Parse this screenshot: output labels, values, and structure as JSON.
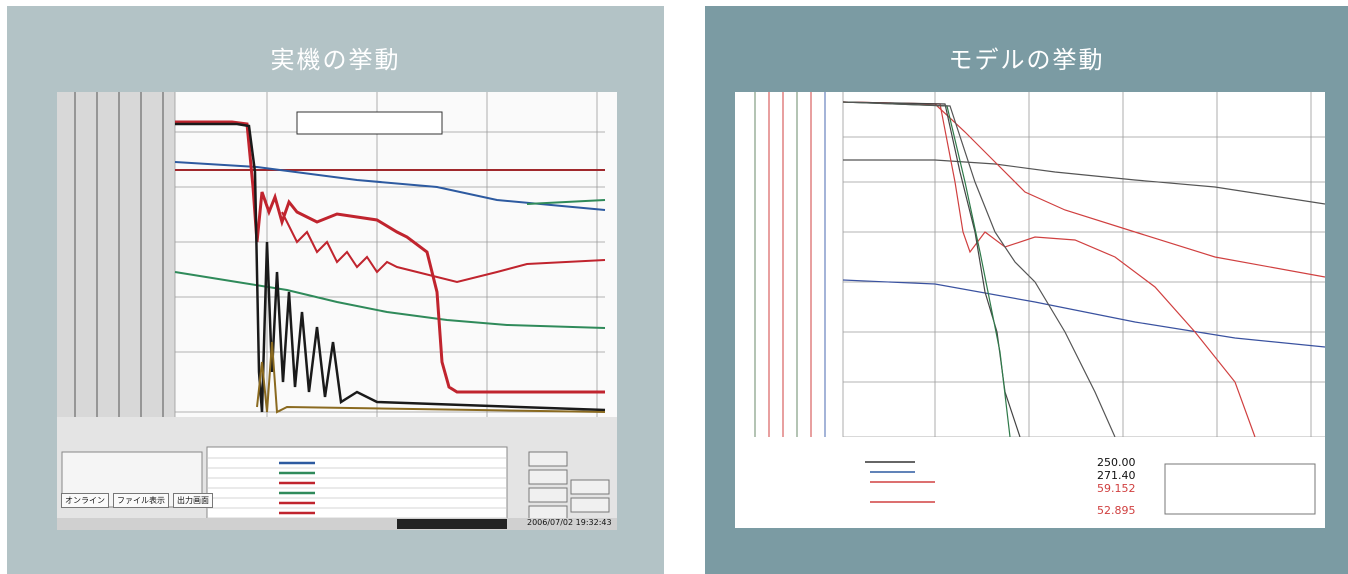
{
  "panels": {
    "left": {
      "title": "実機の挙動"
    },
    "right": {
      "title": "モデルの挙動"
    }
  },
  "left_screen": {
    "buttons": [
      "オンライン",
      "ファイル表示",
      "出力画面"
    ],
    "timestamp": "2006/07/02 19:32:43"
  },
  "right_screen": {
    "value_1": "250.00",
    "value_2": "271.40",
    "value_3": "59.152",
    "value_4": "52.895"
  },
  "colors": {
    "left_panel": "#b3c3c6",
    "right_panel": "#7b9ba3",
    "red": "#c0242e",
    "blue": "#2d5aa0",
    "green": "#2f8a5a",
    "black": "#1a1a1a"
  }
}
